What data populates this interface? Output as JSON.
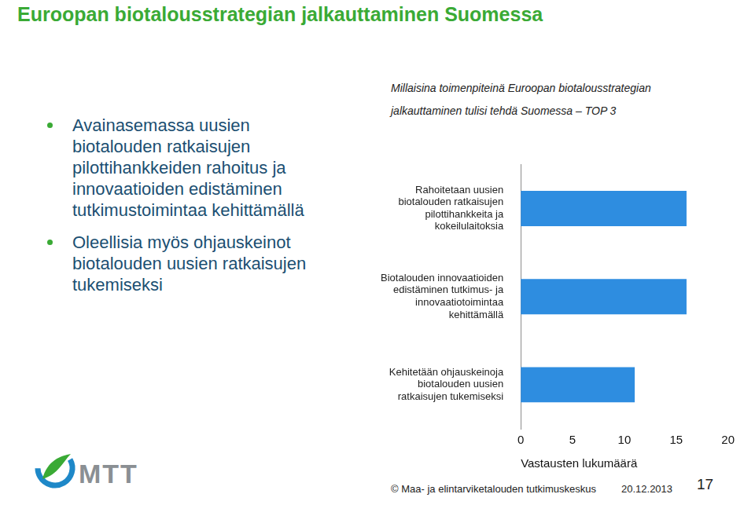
{
  "slide": {
    "title": "Euroopan biotalousstrategian jalkauttaminen Suomessa",
    "bullets": [
      "Avainasemassa uusien biotalouden ratkaisujen pilottihankkeiden rahoitus ja innovaatioiden edistäminen tutkimustoimintaa kehittämällä",
      "Oleellisia myös ohjauskeinot biotalouden uusien ratkaisujen tukemiseksi"
    ],
    "logo_text": "MTT",
    "footer": "© Maa- ja elintarviketalouden tutkimuskeskus",
    "date": "20.12.2013",
    "page": 17
  },
  "chart_data": {
    "type": "bar",
    "orientation": "horizontal",
    "title": "Millaisina toimenpiteinä Euroopan biotalousstrategian jalkauttaminen tulisi tehdä Suomessa – TOP 3",
    "x_label": "Vastausten lukumäärä",
    "categories": [
      "Rahoitetaan uusien biotalouden ratkaisujen pilottihankkeita ja kokeilulaitoksia",
      "Biotalouden innovaatioiden edistäminen tutkimus- ja innovaatiotoimintaa kehittämällä",
      "Kehitetään ohjauskeinoja biotalouden uusien ratkaisujen tukemiseksi"
    ],
    "values": [
      16,
      16,
      11
    ],
    "color": "#2e8de0",
    "xlim": [
      0,
      20
    ],
    "xticks": [
      0,
      5,
      10,
      15,
      20
    ],
    "grid": false
  }
}
